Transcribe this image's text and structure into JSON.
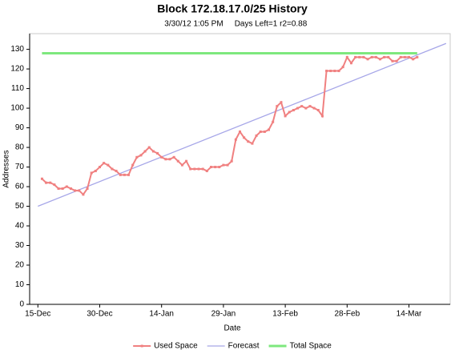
{
  "chart_data": {
    "type": "line",
    "title": "Block 172.18.17.0/25 History",
    "subtitle": "3/30/12 1:05 PM",
    "annotation": "Days Left=1 r2=0.88",
    "x_label": "Date",
    "y_label": "Addresses",
    "xlim": [
      "13-Dec",
      "24-Mar"
    ],
    "xticks": [
      "15-Dec",
      "30-Dec",
      "14-Jan",
      "29-Jan",
      "13-Feb",
      "28-Feb",
      "14-Mar"
    ],
    "ylim": [
      0,
      138
    ],
    "yticks": [
      0,
      10,
      20,
      30,
      40,
      50,
      60,
      70,
      80,
      90,
      100,
      110,
      120,
      130
    ],
    "grid": false,
    "legend": "bottom",
    "series": [
      {
        "name": "Used Space",
        "color": "#f08080",
        "markers": true,
        "x": [
          "16-Dec",
          "17-Dec",
          "18-Dec",
          "19-Dec",
          "20-Dec",
          "21-Dec",
          "22-Dec",
          "23-Dec",
          "24-Dec",
          "25-Dec",
          "26-Dec",
          "27-Dec",
          "28-Dec",
          "29-Dec",
          "30-Dec",
          "31-Dec",
          "1-Jan",
          "2-Jan",
          "3-Jan",
          "4-Jan",
          "5-Jan",
          "6-Jan",
          "7-Jan",
          "8-Jan",
          "9-Jan",
          "10-Jan",
          "11-Jan",
          "12-Jan",
          "13-Jan",
          "14-Jan",
          "15-Jan",
          "16-Jan",
          "17-Jan",
          "18-Jan",
          "19-Jan",
          "20-Jan",
          "21-Jan",
          "22-Jan",
          "23-Jan",
          "24-Jan",
          "25-Jan",
          "26-Jan",
          "27-Jan",
          "28-Jan",
          "29-Jan",
          "30-Jan",
          "31-Jan",
          "1-Feb",
          "2-Feb",
          "3-Feb",
          "4-Feb",
          "5-Feb",
          "6-Feb",
          "7-Feb",
          "8-Feb",
          "9-Feb",
          "10-Feb",
          "11-Feb",
          "12-Feb",
          "13-Feb",
          "14-Feb",
          "15-Feb",
          "16-Feb",
          "17-Feb",
          "18-Feb",
          "19-Feb",
          "20-Feb",
          "21-Feb",
          "22-Feb",
          "23-Feb",
          "24-Feb",
          "25-Feb",
          "26-Feb",
          "27-Feb",
          "28-Feb",
          "29-Feb",
          "1-Mar",
          "2-Mar",
          "3-Mar",
          "4-Mar",
          "5-Mar",
          "6-Mar",
          "7-Mar",
          "8-Mar",
          "9-Mar",
          "10-Mar",
          "11-Mar",
          "12-Mar",
          "13-Mar",
          "14-Mar",
          "15-Mar",
          "16-Mar"
        ],
        "values": [
          64,
          62,
          62,
          61,
          59,
          59,
          60,
          59,
          58,
          58,
          56,
          59,
          67,
          68,
          70,
          72,
          71,
          69,
          68,
          66,
          66,
          66,
          71,
          75,
          76,
          78,
          80,
          78,
          77,
          75,
          74,
          74,
          75,
          73,
          71,
          73,
          69,
          69,
          69,
          69,
          68,
          70,
          70,
          70,
          71,
          71,
          73,
          84,
          88,
          85,
          83,
          82,
          86,
          88,
          88,
          89,
          93,
          101,
          103,
          96,
          98,
          99,
          100,
          101,
          100,
          101,
          100,
          99,
          96,
          119,
          119,
          119,
          119,
          121,
          126,
          123,
          126,
          126,
          126,
          125,
          126,
          126,
          125,
          126,
          126,
          124,
          124,
          126,
          126,
          126,
          125,
          126
        ]
      },
      {
        "name": "Forecast",
        "color": "#a6a6e8",
        "markers": false,
        "x": [
          "15-Dec",
          "23-Mar"
        ],
        "values": [
          50,
          133
        ]
      },
      {
        "name": "Total Space",
        "color": "#7ee87e",
        "markers": false,
        "x": [
          "16-Dec",
          "16-Mar"
        ],
        "values": [
          128,
          128
        ]
      }
    ]
  }
}
